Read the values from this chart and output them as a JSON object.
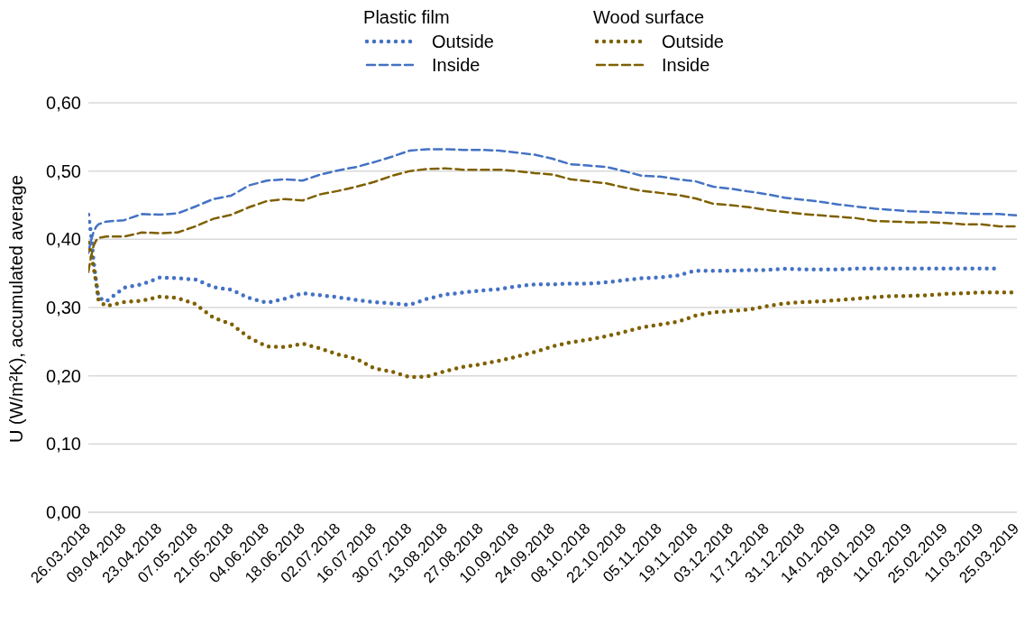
{
  "chart_data": {
    "type": "line",
    "ylabel": "U (W/m²K), accumulated average",
    "legend": "top",
    "grid": "y",
    "annotations": [
      "Plastic film",
      "Wood surface"
    ],
    "x": [
      "2018-03-26",
      "2018-03-27",
      "2018-03-28",
      "2018-03-29",
      "2018-03-30",
      "2018-04-02",
      "2018-04-09",
      "2018-04-16",
      "2018-04-23",
      "2018-04-30",
      "2018-05-07",
      "2018-05-14",
      "2018-05-21",
      "2018-05-28",
      "2018-06-04",
      "2018-06-11",
      "2018-06-18",
      "2018-06-25",
      "2018-07-02",
      "2018-07-09",
      "2018-07-16",
      "2018-07-23",
      "2018-07-30",
      "2018-08-06",
      "2018-08-13",
      "2018-08-20",
      "2018-08-27",
      "2018-09-03",
      "2018-09-10",
      "2018-09-17",
      "2018-09-24",
      "2018-10-01",
      "2018-10-08",
      "2018-10-15",
      "2018-10-22",
      "2018-10-29",
      "2018-11-05",
      "2018-11-12",
      "2018-11-19",
      "2018-11-26",
      "2018-12-03",
      "2018-12-10",
      "2018-12-17",
      "2018-12-24",
      "2018-12-31",
      "2019-01-07",
      "2019-01-14",
      "2019-01-21",
      "2019-01-28",
      "2019-02-04",
      "2019-02-11",
      "2019-02-18",
      "2019-02-25",
      "2019-03-04",
      "2019-03-11",
      "2019-03-18",
      "2019-03-25"
    ],
    "series": [
      {
        "name": "Outside",
        "color": "#4472c4",
        "line_style": "dotted",
        "values": [
          0.436,
          0.41,
          0.37,
          0.34,
          0.315,
          0.309,
          0.329,
          0.334,
          0.344,
          0.343,
          0.341,
          0.33,
          0.326,
          0.314,
          0.307,
          0.313,
          0.321,
          0.318,
          0.315,
          0.311,
          0.308,
          0.306,
          0.304,
          0.313,
          0.319,
          0.322,
          0.325,
          0.327,
          0.331,
          0.334,
          0.334,
          0.335,
          0.335,
          0.337,
          0.34,
          0.343,
          0.344,
          0.347,
          0.354,
          0.354,
          0.354,
          0.355,
          0.355,
          0.357,
          0.356,
          0.356,
          0.356,
          0.357,
          0.357,
          0.357,
          0.357,
          0.357,
          0.357,
          0.357,
          0.357,
          0.357,
          null
        ]
      },
      {
        "name": "Inside",
        "color": "#4472c4",
        "line_style": "dashed",
        "values": [
          0.38,
          0.398,
          0.41,
          0.418,
          0.422,
          0.426,
          0.428,
          0.437,
          0.436,
          0.438,
          0.448,
          0.459,
          0.464,
          0.479,
          0.486,
          0.488,
          0.486,
          0.495,
          0.501,
          0.506,
          0.513,
          0.521,
          0.53,
          0.532,
          0.532,
          0.531,
          0.531,
          0.53,
          0.527,
          0.524,
          0.518,
          0.51,
          0.508,
          0.506,
          0.5,
          0.493,
          0.492,
          0.488,
          0.485,
          0.477,
          0.474,
          0.47,
          0.466,
          0.461,
          0.458,
          0.455,
          0.451,
          0.448,
          0.445,
          0.443,
          0.441,
          0.44,
          0.439,
          0.438,
          0.437,
          0.437,
          0.435
        ]
      },
      {
        "name": "Outside",
        "color": "#7f6000",
        "line_style": "dotted",
        "values": [
          0.395,
          0.38,
          0.36,
          0.338,
          0.31,
          0.302,
          0.308,
          0.31,
          0.316,
          0.314,
          0.305,
          0.285,
          0.276,
          0.256,
          0.243,
          0.242,
          0.247,
          0.24,
          0.231,
          0.225,
          0.211,
          0.206,
          0.198,
          0.199,
          0.207,
          0.213,
          0.217,
          0.222,
          0.228,
          0.235,
          0.243,
          0.249,
          0.253,
          0.258,
          0.264,
          0.271,
          0.275,
          0.279,
          0.288,
          0.293,
          0.295,
          0.297,
          0.302,
          0.306,
          0.308,
          0.309,
          0.311,
          0.313,
          0.315,
          0.317,
          0.317,
          0.318,
          0.32,
          0.321,
          0.322,
          0.322,
          0.322
        ]
      },
      {
        "name": "Inside",
        "color": "#7f6000",
        "line_style": "dashed",
        "values": [
          0.352,
          0.373,
          0.39,
          0.398,
          0.402,
          0.404,
          0.404,
          0.41,
          0.409,
          0.41,
          0.419,
          0.43,
          0.436,
          0.447,
          0.456,
          0.459,
          0.457,
          0.466,
          0.471,
          0.477,
          0.484,
          0.493,
          0.5,
          0.503,
          0.504,
          0.502,
          0.502,
          0.502,
          0.5,
          0.497,
          0.495,
          0.488,
          0.485,
          0.482,
          0.476,
          0.471,
          0.468,
          0.465,
          0.46,
          0.452,
          0.45,
          0.447,
          0.443,
          0.44,
          0.437,
          0.435,
          0.433,
          0.431,
          0.427,
          0.426,
          0.425,
          0.425,
          0.424,
          0.422,
          0.422,
          0.419,
          0.419
        ]
      }
    ],
    "xlim": [
      "2018-03-26",
      "2019-03-25"
    ],
    "xticks": [
      {
        "value": "2018-03-26",
        "label": "26.03.2018"
      },
      {
        "value": "2018-04-09",
        "label": "09.04.2018"
      },
      {
        "value": "2018-04-23",
        "label": "23.04.2018"
      },
      {
        "value": "2018-05-07",
        "label": "07.05.2018"
      },
      {
        "value": "2018-05-21",
        "label": "21.05.2018"
      },
      {
        "value": "2018-06-04",
        "label": "04.06.2018"
      },
      {
        "value": "2018-06-18",
        "label": "18.06.2018"
      },
      {
        "value": "2018-07-02",
        "label": "02.07.2018"
      },
      {
        "value": "2018-07-16",
        "label": "16.07.2018"
      },
      {
        "value": "2018-07-30",
        "label": "30.07.2018"
      },
      {
        "value": "2018-08-13",
        "label": "13.08.2018"
      },
      {
        "value": "2018-08-27",
        "label": "27.08.2018"
      },
      {
        "value": "2018-09-10",
        "label": "10.09.2018"
      },
      {
        "value": "2018-09-24",
        "label": "24.09.2018"
      },
      {
        "value": "2018-10-08",
        "label": "08.10.2018"
      },
      {
        "value": "2018-10-22",
        "label": "22.10.2018"
      },
      {
        "value": "2018-11-05",
        "label": "05.11.2018"
      },
      {
        "value": "2018-11-19",
        "label": "19.11.2018"
      },
      {
        "value": "2018-12-03",
        "label": "03.12.2018"
      },
      {
        "value": "2018-12-17",
        "label": "17.12.2018"
      },
      {
        "value": "2018-12-31",
        "label": "31.12.2018"
      },
      {
        "value": "2019-01-14",
        "label": "14.01.2019"
      },
      {
        "value": "2019-01-28",
        "label": "28.01.2019"
      },
      {
        "value": "2019-02-11",
        "label": "11.02.2019"
      },
      {
        "value": "2019-02-25",
        "label": "25.02.2019"
      },
      {
        "value": "2019-03-11",
        "label": "11.03.2019"
      },
      {
        "value": "2019-03-25",
        "label": "25.03.2019"
      }
    ],
    "ylim": [
      0,
      0.6
    ],
    "yticks": [
      {
        "value": 0,
        "label": "0,00"
      },
      {
        "value": 0.1,
        "label": "0,10"
      },
      {
        "value": 0.2,
        "label": "0,20"
      },
      {
        "value": 0.3,
        "label": "0,30"
      },
      {
        "value": 0.4,
        "label": "0,40"
      },
      {
        "value": 0.5,
        "label": "0,50"
      },
      {
        "value": 0.6,
        "label": "0,60"
      }
    ]
  }
}
